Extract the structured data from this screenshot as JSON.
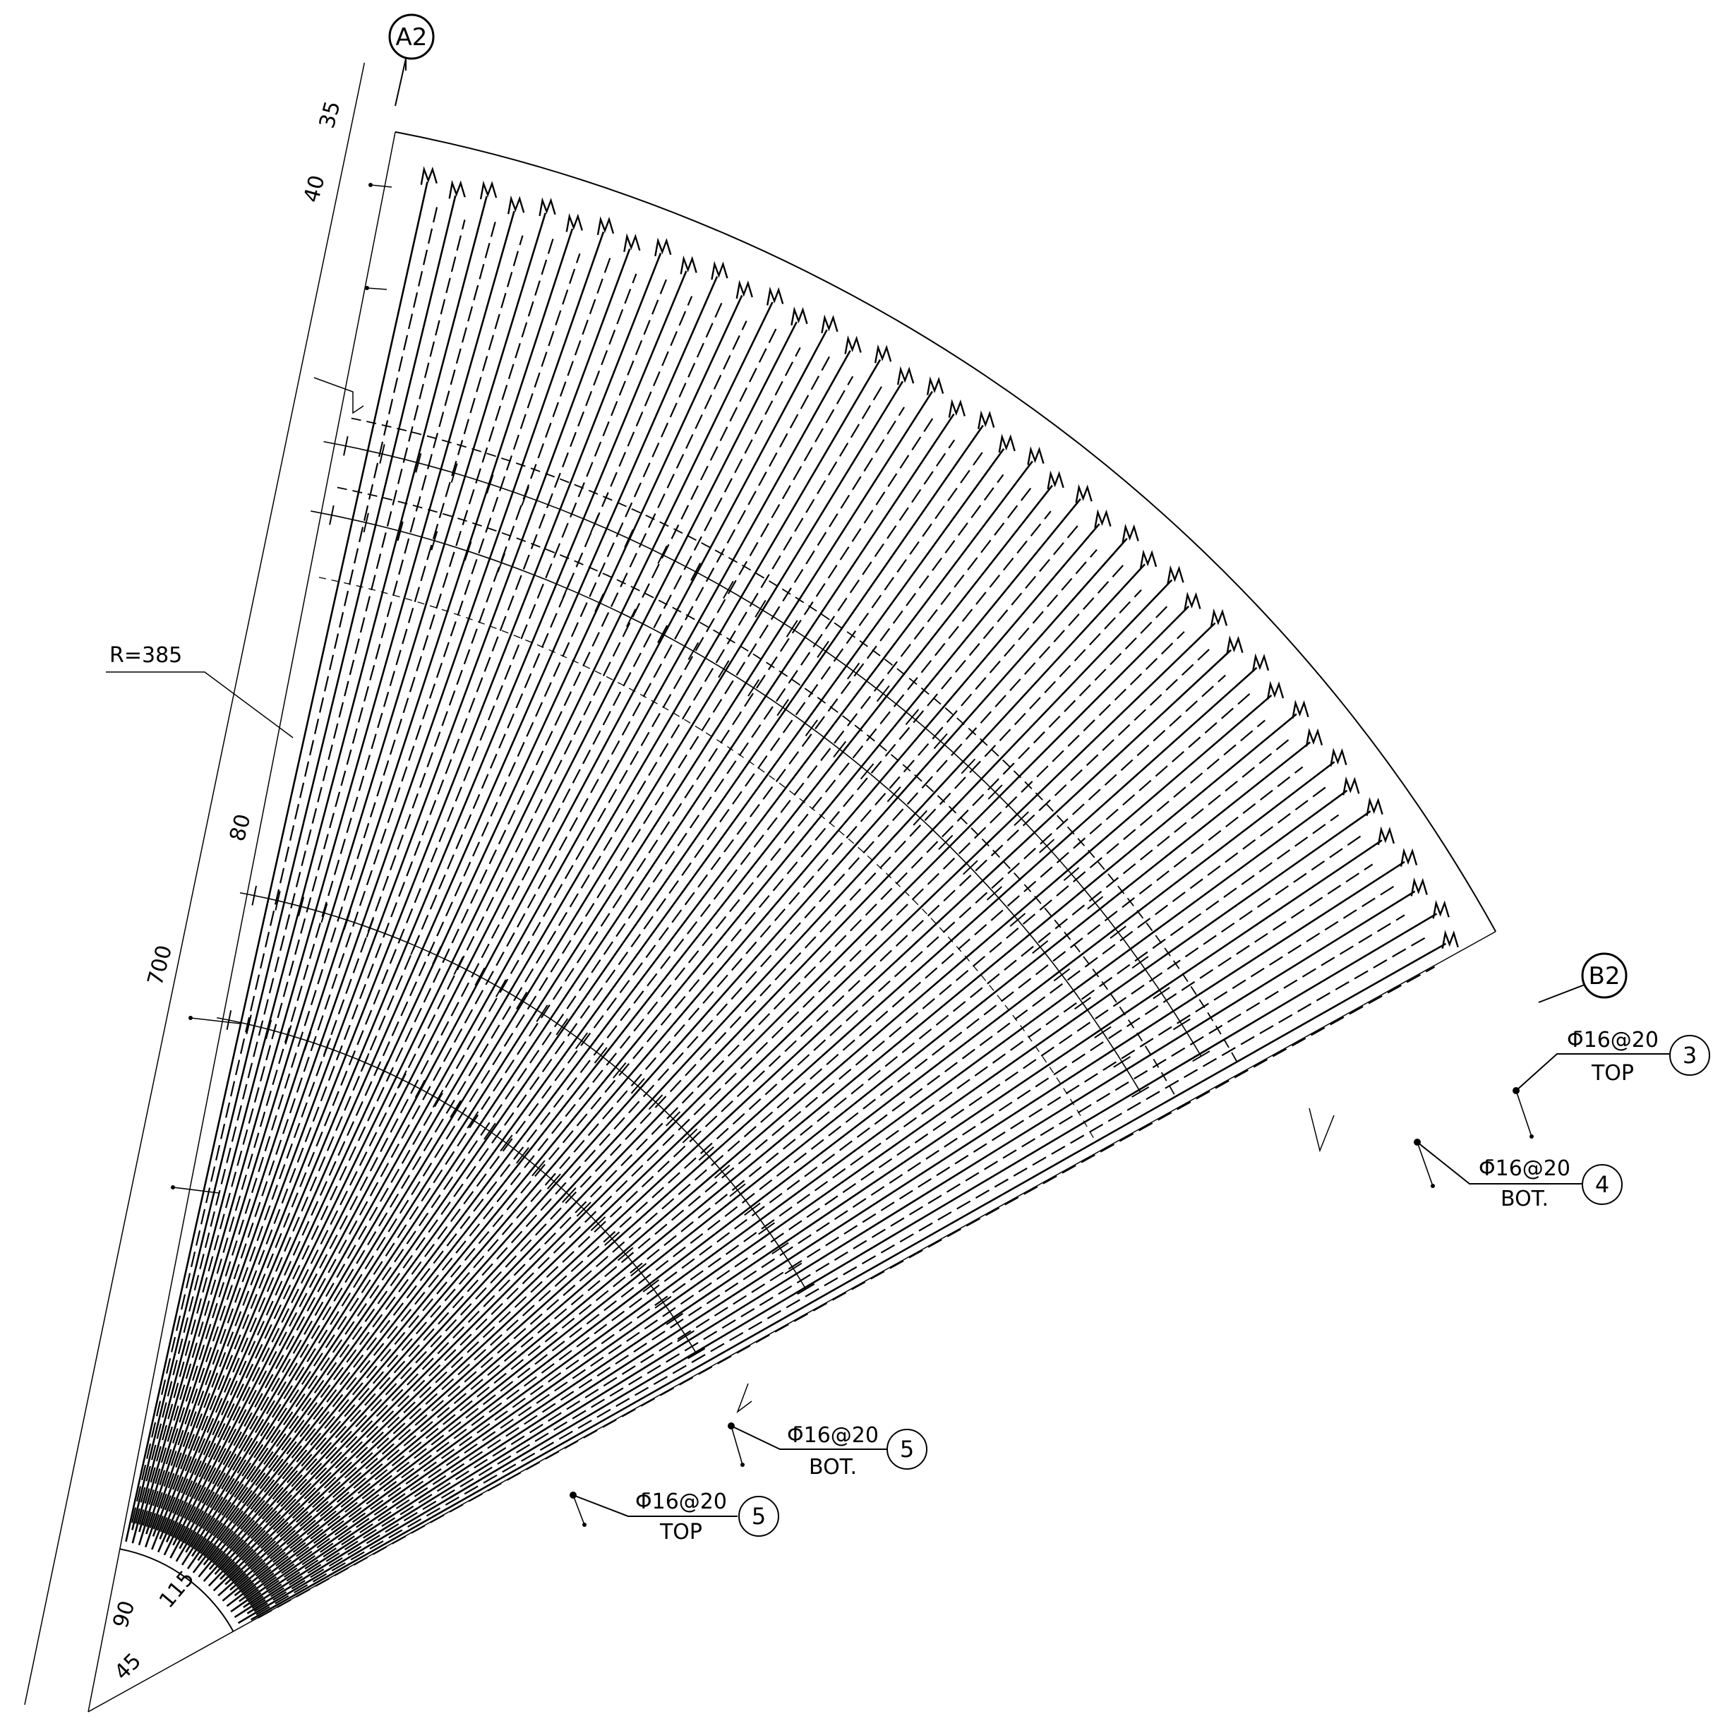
{
  "axes": [
    {
      "id": "A2",
      "label": "A2"
    },
    {
      "id": "B2",
      "label": "B2"
    }
  ],
  "dimensions": {
    "d35": "35",
    "d40": "40",
    "d700": "700",
    "d80": "80",
    "radius": "R=385",
    "d90": "90",
    "d115": "115",
    "d45": "45"
  },
  "rebar_labels": [
    {
      "id": "bar3",
      "spec": "Φ̄16@20",
      "position": "TOP",
      "mark": "3"
    },
    {
      "id": "bar4",
      "spec": "Φ̄16@20",
      "position": "BOT.",
      "mark": "4"
    },
    {
      "id": "bar5-bot",
      "spec": "Φ̄16@20",
      "position": "BOT.",
      "mark": "5"
    },
    {
      "id": "bar5-top",
      "spec": "Φ̄16@20",
      "position": "TOP",
      "mark": "5"
    }
  ],
  "colors": {
    "line": "#000000",
    "background": "#ffffff"
  }
}
